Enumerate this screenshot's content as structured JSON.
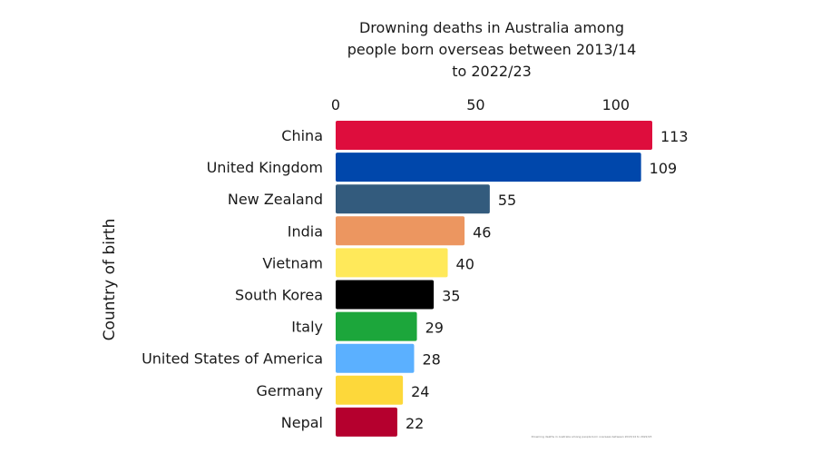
{
  "chart_data": {
    "type": "bar",
    "orientation": "horizontal",
    "title": "Drowning deaths in Australia among people born overseas between 2013/14 to 2022/23",
    "title_lines": [
      "Drowning deaths in Australia among",
      "people born overseas between 2013/14",
      "to 2022/23"
    ],
    "ylabel": "Country of birth",
    "xlabel": "",
    "xlim": [
      0,
      113
    ],
    "x_ticks": [
      0,
      50,
      100
    ],
    "x_axis_position": "top",
    "grid": false,
    "legend": "none",
    "categories": [
      "China",
      "United Kingdom",
      "New Zealand",
      "India",
      "Vietnam",
      "South Korea",
      "Italy",
      "United States of America",
      "Germany",
      "Nepal"
    ],
    "values": [
      113,
      109,
      55,
      46,
      40,
      35,
      29,
      28,
      24,
      22
    ],
    "colors": [
      "#de0d3d",
      "#0047ab",
      "#335b7d",
      "#ec9660",
      "#ffe95a",
      "#000000",
      "#1ca63b",
      "#5bb0ff",
      "#fdd83a",
      "#b5002e"
    ],
    "footnote": "Drowning deaths in Australia among people born overseas between 2013/14 to 2022/23"
  }
}
